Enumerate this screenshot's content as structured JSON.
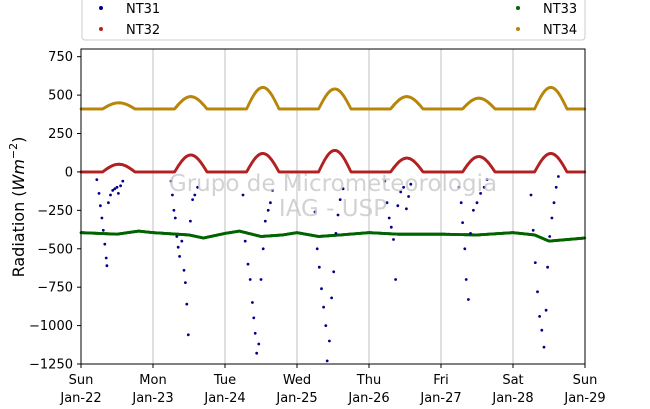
{
  "chart_data": {
    "type": "scatter",
    "title": "",
    "xlabel": "",
    "ylabel": "Radiation (Wm⁻²)",
    "ylabel_base": "Radiation (",
    "ylabel_unit": "Wm",
    "ylabel_exp": "−2",
    "ylabel_close": ")",
    "ylim": [
      -1250,
      800
    ],
    "xlim": [
      0,
      7
    ],
    "yticks": [
      750,
      500,
      250,
      0,
      -250,
      -500,
      -750,
      -1000,
      -1250
    ],
    "ytick_labels": [
      "750",
      "500",
      "250",
      "0",
      "−250",
      "−500",
      "−750",
      "−1000",
      "−1250"
    ],
    "xticks": [
      0,
      1,
      2,
      3,
      4,
      5,
      6,
      7
    ],
    "xtick_labels": [
      [
        "Sun",
        "Jan-22"
      ],
      [
        "Mon",
        "Jan-23"
      ],
      [
        "Tue",
        "Jan-24"
      ],
      [
        "Wed",
        "Jan-25"
      ],
      [
        "Thu",
        "Jan-26"
      ],
      [
        "Fri",
        "Jan-27"
      ],
      [
        "Sat",
        "Jan-28"
      ],
      [
        "Sun",
        "Jan-29"
      ]
    ],
    "grid": "vertical",
    "legend_placement": "top (above plot)",
    "watermark": [
      "Grupo de Micrometeorologia",
      "IAG - USP"
    ],
    "series": [
      {
        "name": "NT31",
        "color": "#00008b",
        "note": "negative values, daytime only",
        "points": [
          [
            0.22,
            -50
          ],
          [
            0.25,
            -140
          ],
          [
            0.27,
            -220
          ],
          [
            0.29,
            -300
          ],
          [
            0.31,
            -380
          ],
          [
            0.33,
            -470
          ],
          [
            0.35,
            -560
          ],
          [
            0.36,
            -610
          ],
          [
            0.38,
            -200
          ],
          [
            0.41,
            -150
          ],
          [
            0.44,
            -120
          ],
          [
            0.47,
            -110
          ],
          [
            0.5,
            -100
          ],
          [
            0.52,
            -140
          ],
          [
            0.55,
            -90
          ],
          [
            0.58,
            -60
          ],
          [
            1.25,
            -60
          ],
          [
            1.27,
            -150
          ],
          [
            1.29,
            -250
          ],
          [
            1.31,
            -300
          ],
          [
            1.33,
            -420
          ],
          [
            1.35,
            -490
          ],
          [
            1.37,
            -550
          ],
          [
            1.4,
            -450
          ],
          [
            1.43,
            -640
          ],
          [
            1.45,
            -720
          ],
          [
            1.47,
            -860
          ],
          [
            1.49,
            -1060
          ],
          [
            1.52,
            -320
          ],
          [
            1.55,
            -180
          ],
          [
            1.58,
            -150
          ],
          [
            1.62,
            -100
          ],
          [
            2.25,
            -150
          ],
          [
            2.28,
            -450
          ],
          [
            2.32,
            -600
          ],
          [
            2.35,
            -700
          ],
          [
            2.38,
            -850
          ],
          [
            2.4,
            -950
          ],
          [
            2.42,
            -1050
          ],
          [
            2.44,
            -1180
          ],
          [
            2.47,
            -1120
          ],
          [
            2.5,
            -700
          ],
          [
            2.53,
            -500
          ],
          [
            2.56,
            -320
          ],
          [
            2.6,
            -250
          ],
          [
            2.63,
            -200
          ],
          [
            2.66,
            -120
          ],
          [
            3.25,
            -260
          ],
          [
            3.28,
            -500
          ],
          [
            3.31,
            -620
          ],
          [
            3.34,
            -760
          ],
          [
            3.37,
            -880
          ],
          [
            3.4,
            -1000
          ],
          [
            3.42,
            -1230
          ],
          [
            3.45,
            -1100
          ],
          [
            3.48,
            -820
          ],
          [
            3.51,
            -650
          ],
          [
            3.54,
            -400
          ],
          [
            3.57,
            -280
          ],
          [
            3.6,
            -180
          ],
          [
            3.64,
            -110
          ],
          [
            4.22,
            -60
          ],
          [
            4.25,
            -200
          ],
          [
            4.28,
            -300
          ],
          [
            4.31,
            -360
          ],
          [
            4.34,
            -440
          ],
          [
            4.37,
            -700
          ],
          [
            4.4,
            -220
          ],
          [
            4.44,
            -130
          ],
          [
            4.48,
            -100
          ],
          [
            4.52,
            -240
          ],
          [
            4.55,
            -160
          ],
          [
            4.58,
            -80
          ],
          [
            5.25,
            -100
          ],
          [
            5.28,
            -200
          ],
          [
            5.3,
            -330
          ],
          [
            5.33,
            -500
          ],
          [
            5.35,
            -700
          ],
          [
            5.38,
            -830
          ],
          [
            5.41,
            -400
          ],
          [
            5.45,
            -250
          ],
          [
            5.5,
            -200
          ],
          [
            5.55,
            -140
          ],
          [
            5.6,
            -100
          ],
          [
            5.64,
            -50
          ],
          [
            6.25,
            -150
          ],
          [
            6.28,
            -380
          ],
          [
            6.31,
            -590
          ],
          [
            6.34,
            -780
          ],
          [
            6.37,
            -940
          ],
          [
            6.4,
            -1030
          ],
          [
            6.43,
            -1140
          ],
          [
            6.46,
            -900
          ],
          [
            6.48,
            -620
          ],
          [
            6.51,
            -420
          ],
          [
            6.54,
            -300
          ],
          [
            6.57,
            -200
          ],
          [
            6.6,
            -100
          ],
          [
            6.63,
            -30
          ]
        ]
      },
      {
        "name": "NT32",
        "color": "#b22222",
        "note": "near zero, daytime positive bump",
        "daily_peaks": [
          50,
          110,
          120,
          140,
          90,
          100,
          120
        ]
      },
      {
        "name": "NT33",
        "color": "#006400",
        "note": "roughly constant about -400",
        "base": -400,
        "points": [
          [
            0.0,
            -395
          ],
          [
            0.5,
            -405
          ],
          [
            0.8,
            -385
          ],
          [
            1.0,
            -395
          ],
          [
            1.5,
            -410
          ],
          [
            1.7,
            -430
          ],
          [
            2.0,
            -400
          ],
          [
            2.2,
            -385
          ],
          [
            2.5,
            -420
          ],
          [
            2.8,
            -410
          ],
          [
            3.0,
            -395
          ],
          [
            3.3,
            -420
          ],
          [
            3.6,
            -410
          ],
          [
            4.0,
            -395
          ],
          [
            4.4,
            -405
          ],
          [
            5.0,
            -405
          ],
          [
            5.5,
            -410
          ],
          [
            6.0,
            -395
          ],
          [
            6.3,
            -410
          ],
          [
            6.5,
            -450
          ],
          [
            7.0,
            -430
          ]
        ]
      },
      {
        "name": "NT34",
        "color": "#b8860b",
        "note": "about 410 base, daytime bump",
        "base": 410,
        "daily_peaks": [
          450,
          490,
          550,
          540,
          490,
          480,
          550
        ]
      }
    ]
  }
}
